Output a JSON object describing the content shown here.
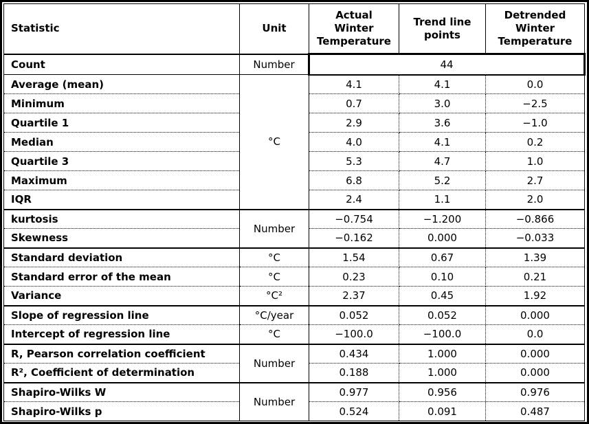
{
  "chart_data": {
    "type": "table",
    "columns": [
      "Statistic",
      "Unit",
      "Actual Winter Temperature",
      "Trend line points",
      "Detrended Winter Temperature"
    ],
    "rows": [
      {
        "statistic": "Count",
        "unit": "Number",
        "unit_rowspan": 1,
        "span_value": "44",
        "group_end": true
      },
      {
        "statistic": "Average (mean)",
        "unit": "°C",
        "unit_rowspan": 7,
        "values": [
          "4.1",
          "4.1",
          "0.0"
        ]
      },
      {
        "statistic": "Minimum",
        "values": [
          "0.7",
          "3.0",
          "−2.5"
        ]
      },
      {
        "statistic": "Quartile 1",
        "values": [
          "2.9",
          "3.6",
          "−1.0"
        ]
      },
      {
        "statistic": "Median",
        "values": [
          "4.0",
          "4.1",
          "0.2"
        ]
      },
      {
        "statistic": "Quartile 3",
        "values": [
          "5.3",
          "4.7",
          "1.0"
        ]
      },
      {
        "statistic": "Maximum",
        "values": [
          "6.8",
          "5.2",
          "2.7"
        ]
      },
      {
        "statistic": "IQR",
        "values": [
          "2.4",
          "1.1",
          "2.0"
        ],
        "group_end": true
      },
      {
        "statistic": "kurtosis",
        "unit": "Number",
        "unit_rowspan": 2,
        "values": [
          "−0.754",
          "−1.200",
          "−0.866"
        ]
      },
      {
        "statistic": "Skewness",
        "values": [
          "−0.162",
          "0.000",
          "−0.033"
        ],
        "group_end": true
      },
      {
        "statistic": "Standard deviation",
        "unit": "°C",
        "unit_rowspan": 1,
        "values": [
          "1.54",
          "0.67",
          "1.39"
        ]
      },
      {
        "statistic": "Standard error of the mean",
        "unit": "°C",
        "unit_rowspan": 1,
        "values": [
          "0.23",
          "0.10",
          "0.21"
        ]
      },
      {
        "statistic": "Variance",
        "unit": "°C²",
        "unit_rowspan": 1,
        "values": [
          "2.37",
          "0.45",
          "1.92"
        ],
        "group_end": true
      },
      {
        "statistic": "Slope of regression line",
        "unit": "°C/year",
        "unit_rowspan": 1,
        "values": [
          "0.052",
          "0.052",
          "0.000"
        ]
      },
      {
        "statistic": "Intercept of regression line",
        "unit": "°C",
        "unit_rowspan": 1,
        "values": [
          "−100.0",
          "−100.0",
          "0.0"
        ],
        "group_end": true
      },
      {
        "statistic": "R, Pearson correlation coefficient",
        "unit": "Number",
        "unit_rowspan": 2,
        "values": [
          "0.434",
          "1.000",
          "0.000"
        ]
      },
      {
        "statistic": "R², Coefficient of determination",
        "values": [
          "0.188",
          "1.000",
          "0.000"
        ],
        "group_end": true
      },
      {
        "statistic": "Shapiro-Wilks W",
        "unit": "Number",
        "unit_rowspan": 2,
        "values": [
          "0.977",
          "0.956",
          "0.976"
        ]
      },
      {
        "statistic": "Shapiro-Wilks p",
        "values": [
          "0.524",
          "0.091",
          "0.487"
        ]
      }
    ]
  }
}
